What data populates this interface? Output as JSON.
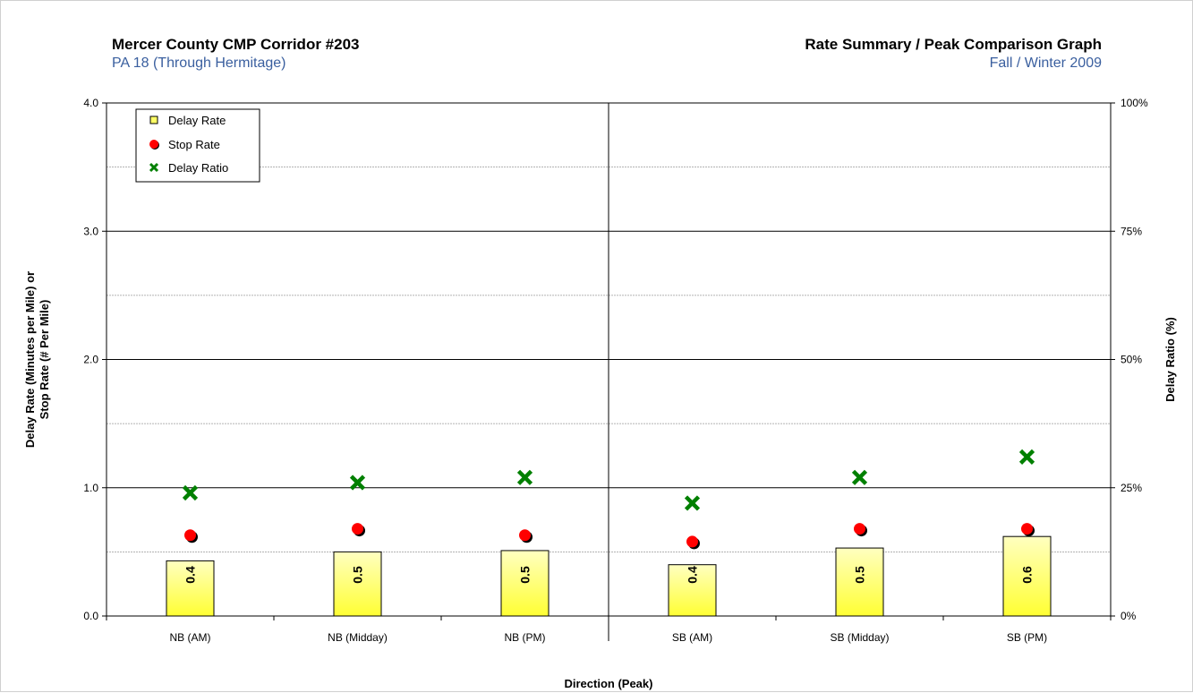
{
  "header": {
    "title_left": "Mercer County CMP Corridor #203",
    "subtitle_left": "PA 18 (Through Hermitage)",
    "title_right": "Rate Summary / Peak Comparison Graph",
    "subtitle_right": "Fall / Winter 2009",
    "subtitle_color": "#3a5f9f"
  },
  "chart_data": {
    "type": "bar",
    "categories": [
      "NB (AM)",
      "NB (Midday)",
      "NB (PM)",
      "SB (AM)",
      "SB (Midday)",
      "SB (PM)"
    ],
    "series": [
      {
        "name": "Delay Rate",
        "type": "bar",
        "values": [
          0.43,
          0.5,
          0.51,
          0.4,
          0.53,
          0.62
        ],
        "labels": [
          "0.4",
          "0.5",
          "0.5",
          "0.4",
          "0.5",
          "0.6"
        ],
        "color": "#ffff66",
        "axis": "left"
      },
      {
        "name": "Stop Rate",
        "type": "scatter",
        "values": [
          0.63,
          0.68,
          0.63,
          0.58,
          0.68,
          0.68
        ],
        "color": "#ff0000",
        "axis": "left"
      },
      {
        "name": "Delay Ratio",
        "type": "scatter",
        "values": [
          24,
          26,
          27,
          22,
          27,
          31
        ],
        "color": "#008000",
        "axis": "right"
      }
    ],
    "xlabel": "Direction (Peak)",
    "ylabel_line1": "Delay Rate (Minutes per Mile) or",
    "ylabel_line2": "Stop Rate (# Per Mile)",
    "y2label": "Delay Ratio (%)",
    "ylim": [
      0,
      4
    ],
    "y_ticks": [
      "0.0",
      "1.0",
      "2.0",
      "3.0",
      "4.0"
    ],
    "y2lim": [
      0,
      100
    ],
    "y2_ticks": [
      "0%",
      "25%",
      "50%",
      "75%",
      "100%"
    ],
    "grid": true,
    "legend_position": "top-left",
    "divider_between": [
      "NB (PM)",
      "SB (AM)"
    ]
  }
}
